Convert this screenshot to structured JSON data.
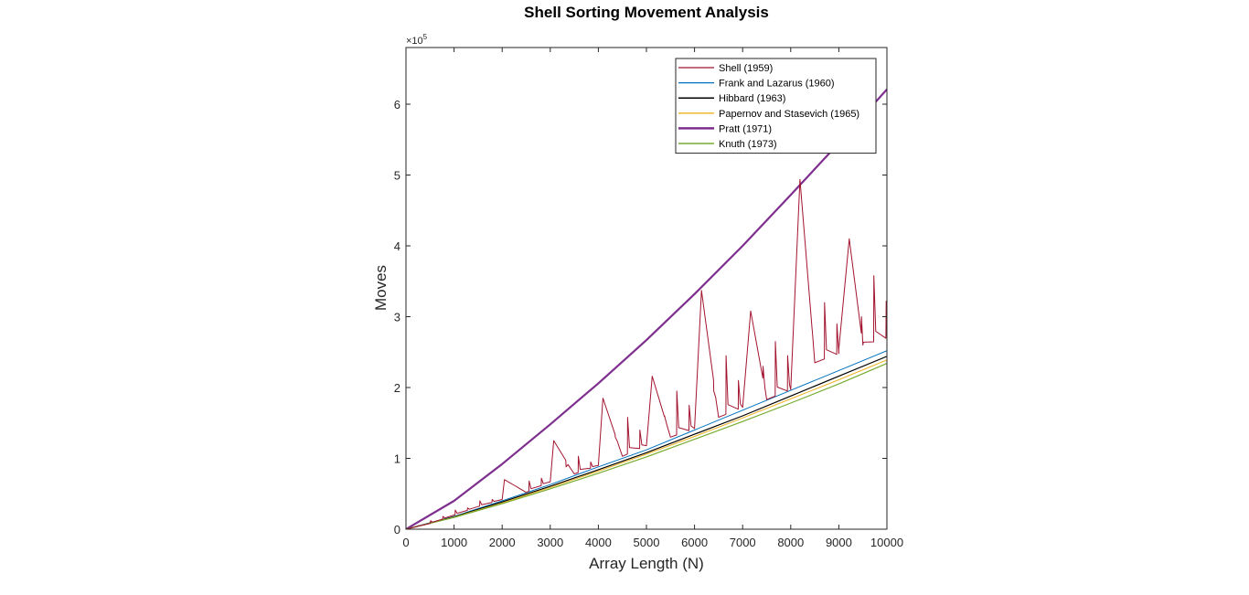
{
  "chart_data": {
    "type": "line",
    "title": "Shell Sorting Movement Analysis",
    "xlabel": "Array Length (N)",
    "ylabel": "Moves",
    "xlim": [
      0,
      10000
    ],
    "ylim": [
      0,
      680000
    ],
    "y_exponent_label": "×10",
    "y_exponent": "5",
    "x_ticks": [
      0,
      1000,
      2000,
      3000,
      4000,
      5000,
      6000,
      7000,
      8000,
      9000,
      10000
    ],
    "x_tick_labels": [
      "0",
      "1000",
      "2000",
      "3000",
      "4000",
      "5000",
      "6000",
      "7000",
      "8000",
      "9000",
      "10000"
    ],
    "y_ticks": [
      0,
      100000,
      200000,
      300000,
      400000,
      500000,
      600000
    ],
    "y_tick_labels": [
      "0",
      "1",
      "2",
      "3",
      "4",
      "5",
      "6"
    ],
    "grid": false,
    "legend_position": "top-right",
    "series": [
      {
        "name": "Shell (1959)",
        "color": "#A2142F",
        "width": 1,
        "x": [
          0,
          500,
          1000,
          1500,
          2000,
          2048,
          2500,
          3000,
          3072,
          3500,
          4000,
          4096,
          4500,
          5000,
          5120,
          5500,
          6000,
          6144,
          6500,
          7000,
          7168,
          7500,
          8000,
          8192,
          8500,
          9000,
          9216,
          9500,
          10000
        ],
        "y": [
          0,
          8000,
          20000,
          32000,
          42000,
          70000,
          52000,
          67000,
          125000,
          78000,
          90000,
          185000,
          103000,
          118000,
          216000,
          130000,
          142000,
          337000,
          158000,
          172000,
          308000,
          183000,
          197000,
          494000,
          235000,
          248000,
          410000,
          260000,
          270000
        ],
        "spikes": [
          [
            256,
            5000
          ],
          [
            512,
            12000
          ],
          [
            768,
            18000
          ],
          [
            1024,
            27000
          ],
          [
            1280,
            30000
          ],
          [
            1536,
            40000
          ],
          [
            1792,
            42000
          ],
          [
            2304,
            60000
          ],
          [
            2560,
            68000
          ],
          [
            2816,
            72000
          ],
          [
            3328,
            88000
          ],
          [
            3584,
            103000
          ],
          [
            3840,
            95000
          ],
          [
            4352,
            130000
          ],
          [
            4608,
            158000
          ],
          [
            4864,
            140000
          ],
          [
            5376,
            160000
          ],
          [
            5632,
            195000
          ],
          [
            5888,
            175000
          ],
          [
            6400,
            195000
          ],
          [
            6656,
            245000
          ],
          [
            6912,
            210000
          ],
          [
            7424,
            230000
          ],
          [
            7680,
            265000
          ],
          [
            7936,
            245000
          ],
          [
            8448,
            280000
          ],
          [
            8704,
            320000
          ],
          [
            8960,
            290000
          ],
          [
            9472,
            300000
          ],
          [
            9728,
            358000
          ],
          [
            9984,
            322000
          ]
        ]
      },
      {
        "name": "Frank and Lazarus (1960)",
        "color": "#0072BD",
        "width": 1,
        "x": [
          0,
          1000,
          2000,
          3000,
          4000,
          5000,
          6000,
          7000,
          8000,
          9000,
          10000
        ],
        "y": [
          0,
          18000,
          40000,
          63000,
          88000,
          112000,
          140000,
          168000,
          196000,
          224000,
          252000
        ]
      },
      {
        "name": "Hibbard (1963)",
        "color": "#000000",
        "width": 1.2,
        "x": [
          0,
          1000,
          2000,
          3000,
          4000,
          5000,
          6000,
          7000,
          8000,
          9000,
          10000
        ],
        "y": [
          0,
          17500,
          38500,
          60500,
          84000,
          108000,
          134000,
          160000,
          188000,
          216000,
          244000
        ]
      },
      {
        "name": "Papernov and Stasevich (1965)",
        "color": "#EDB120",
        "width": 1,
        "x": [
          0,
          1000,
          2000,
          3000,
          4000,
          5000,
          6000,
          7000,
          8000,
          9000,
          10000
        ],
        "y": [
          0,
          17000,
          37000,
          59000,
          82000,
          106000,
          131000,
          157000,
          184000,
          211000,
          239000
        ]
      },
      {
        "name": "Pratt (1971)",
        "color": "#7E2F8E",
        "width": 2.2,
        "x": [
          0,
          1000,
          2000,
          3000,
          4000,
          5000,
          6000,
          7000,
          8000,
          9000,
          10000
        ],
        "y": [
          0,
          40000,
          92000,
          148000,
          206000,
          267000,
          332000,
          400000,
          472000,
          545000,
          621000
        ]
      },
      {
        "name": "Knuth (1973)",
        "color": "#77AC30",
        "width": 1.2,
        "x": [
          0,
          1000,
          2000,
          3000,
          4000,
          5000,
          6000,
          7000,
          8000,
          9000,
          10000
        ],
        "y": [
          0,
          16500,
          36000,
          57000,
          79000,
          102000,
          127000,
          152000,
          178000,
          205000,
          234000
        ]
      }
    ]
  }
}
